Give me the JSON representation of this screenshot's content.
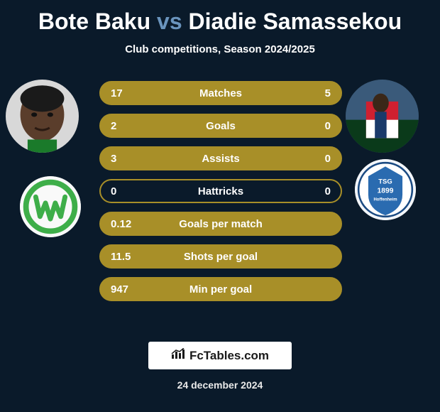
{
  "title": {
    "player1": "Bote Baku",
    "vs": "vs",
    "player2": "Diadie Samassekou"
  },
  "subtitle": "Club competitions, Season 2024/2025",
  "stats": {
    "rows": [
      {
        "label": "Matches",
        "left": "17",
        "right": "5",
        "fill": "#a88f28",
        "border": "#a88f28"
      },
      {
        "label": "Goals",
        "left": "2",
        "right": "0",
        "fill": "#a88f28",
        "border": "#a88f28"
      },
      {
        "label": "Assists",
        "left": "3",
        "right": "0",
        "fill": "#a88f28",
        "border": "#a88f28"
      },
      {
        "label": "Hattricks",
        "left": "0",
        "right": "0",
        "fill": "none",
        "border": "#a88f28"
      },
      {
        "label": "Goals per match",
        "left": "0.12",
        "right": "",
        "fill": "#a88f28",
        "border": "#a88f28"
      },
      {
        "label": "Shots per goal",
        "left": "11.5",
        "right": "",
        "fill": "#a88f28",
        "border": "#a88f28"
      },
      {
        "label": "Min per goal",
        "left": "947",
        "right": "",
        "fill": "#a88f28",
        "border": "#a88f28"
      }
    ]
  },
  "brand": {
    "text": "FcTables.com",
    "icon": "chart-icon"
  },
  "date": "24 december 2024",
  "colors": {
    "bg": "#0a1a2a",
    "accent": "#a88f28",
    "vs": "#6a94bd"
  },
  "avatars": {
    "left_skin": "#5a3d2b",
    "right_bg": "#3a5a7a"
  },
  "clubs": {
    "left_green": "#3eae49",
    "right_blue": "#2a6bb0"
  }
}
